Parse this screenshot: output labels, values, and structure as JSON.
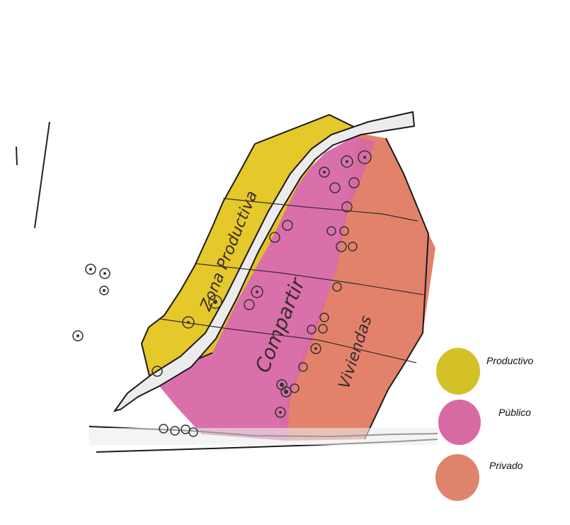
{
  "diagram": {
    "zones": [
      {
        "id": "productivo",
        "label": "Zona Productiva",
        "color": "#e4c51e"
      },
      {
        "id": "publico",
        "label": "Compartir",
        "color": "#d868a6"
      },
      {
        "id": "privado",
        "label": "Viviendas",
        "color": "#e0775e"
      }
    ]
  },
  "legend": {
    "items": [
      {
        "label": "Productivo",
        "color": "#d4c128"
      },
      {
        "label": "Público",
        "color": "#d76aa3"
      },
      {
        "label": "Privado",
        "color": "#de846c"
      }
    ]
  }
}
